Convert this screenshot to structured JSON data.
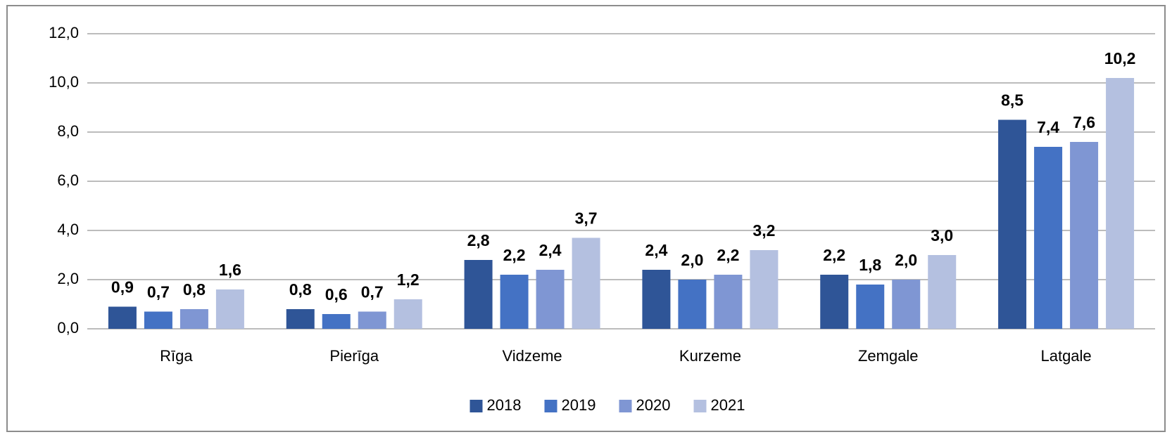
{
  "chart_data": {
    "type": "bar",
    "categories": [
      "Rīga",
      "Pierīga",
      "Vidzeme",
      "Kurzeme",
      "Zemgale",
      "Latgale"
    ],
    "series": [
      {
        "name": "2018",
        "color": "#2f5597",
        "values": [
          0.9,
          0.8,
          2.8,
          2.4,
          2.2,
          8.5
        ],
        "value_labels": [
          "0,9",
          "0,8",
          "2,8",
          "2,4",
          "2,2",
          "8,5"
        ]
      },
      {
        "name": "2019",
        "color": "#4472c4",
        "values": [
          0.7,
          0.6,
          2.2,
          2.0,
          1.8,
          7.4
        ],
        "value_labels": [
          "0,7",
          "0,6",
          "2,2",
          "2,0",
          "1,8",
          "7,4"
        ]
      },
      {
        "name": "2020",
        "color": "#7f96d3",
        "values": [
          0.8,
          0.7,
          2.4,
          2.2,
          2.0,
          7.6
        ],
        "value_labels": [
          "0,8",
          "0,7",
          "2,4",
          "2,2",
          "2,0",
          "7,6"
        ]
      },
      {
        "name": "2021",
        "color": "#b4c0e0",
        "values": [
          1.6,
          1.2,
          3.7,
          3.2,
          3.0,
          10.2
        ],
        "value_labels": [
          "1,6",
          "1,2",
          "3,7",
          "3,2",
          "3,0",
          "10,2"
        ]
      }
    ],
    "ylim": [
      0,
      12
    ],
    "yticks": [
      {
        "value": 0,
        "label": "0,0"
      },
      {
        "value": 2,
        "label": "2,0"
      },
      {
        "value": 4,
        "label": "4,0"
      },
      {
        "value": 6,
        "label": "6,0"
      },
      {
        "value": 8,
        "label": "8,0"
      },
      {
        "value": 10,
        "label": "10,0"
      },
      {
        "value": 12,
        "label": "12,0"
      }
    ],
    "grid": true,
    "legend": "bottom"
  }
}
